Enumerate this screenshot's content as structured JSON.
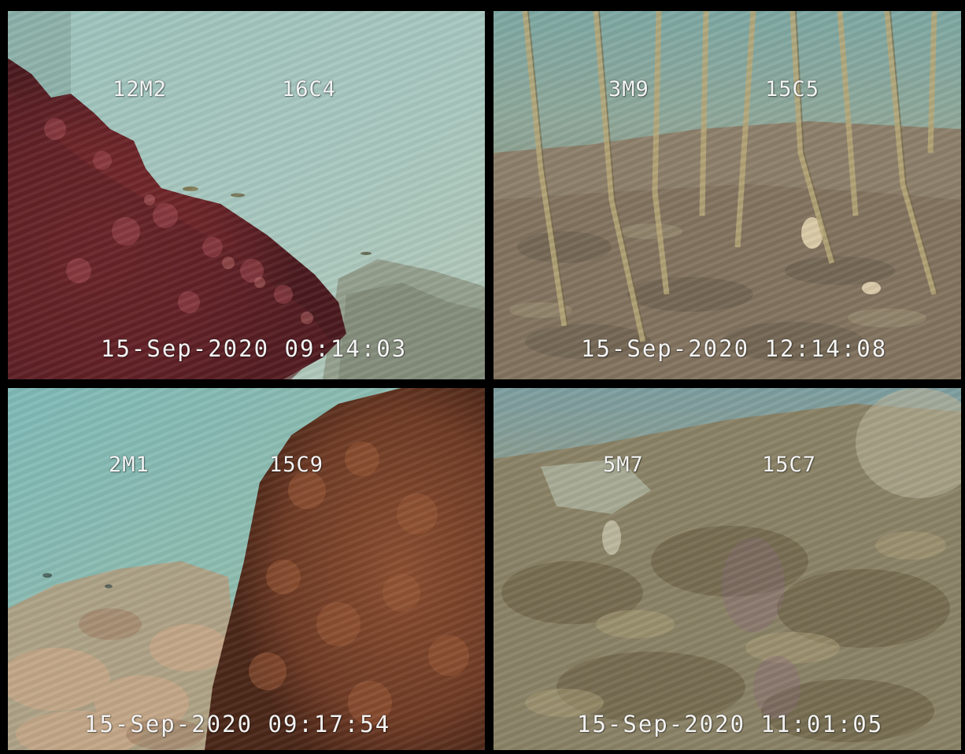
{
  "panels": [
    {
      "id_left": "12M2",
      "id_right": "16C4",
      "timestamp": "15-Sep-2020 09:14:03",
      "scene": "red algae reef against turquoise water"
    },
    {
      "id_left": "3M9",
      "id_right": "15C5",
      "timestamp": "15-Sep-2020 12:14:08",
      "scene": "silty seafloor with tall stalk-like algae"
    },
    {
      "id_left": "2M1",
      "id_right": "15C9",
      "timestamp": "15-Sep-2020 09:17:54",
      "scene": "brown algae over rocky bottom"
    },
    {
      "id_left": "5M7",
      "id_right": "15C7",
      "timestamp": "15-Sep-2020 11:01:05",
      "scene": "dense mixed algae meadow"
    }
  ],
  "colors": {
    "background": "#000000",
    "osd_text": "#f4f4f4"
  }
}
